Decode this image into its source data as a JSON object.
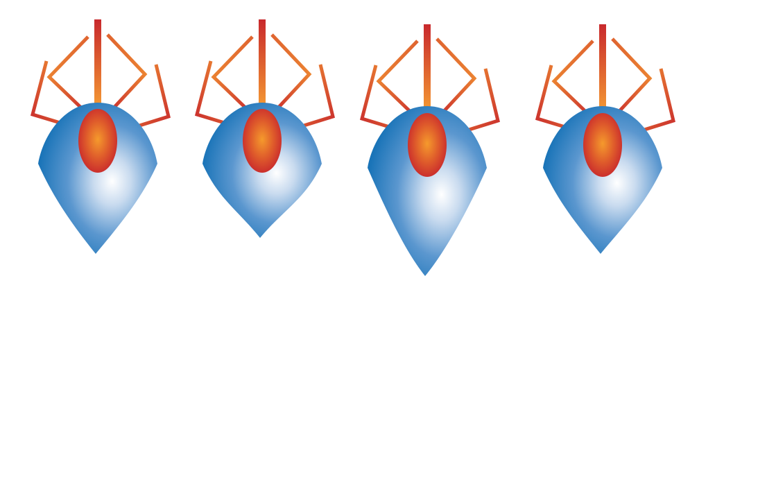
{
  "colors": {
    "background": "#ffffff",
    "body_edge": "#1a74b8",
    "body_mid": "#6fa6d6",
    "body_highlight": "#ffffff",
    "head_center": "#f08a2a",
    "head_edge": "#c8292d",
    "leg_dark": "#c8292d",
    "leg_light": "#f7a033"
  },
  "figures": [
    {
      "name": "spider-1",
      "icon": "spider-icon"
    },
    {
      "name": "spider-2",
      "icon": "spider-icon"
    },
    {
      "name": "spider-3",
      "icon": "spider-icon"
    },
    {
      "name": "spider-4",
      "icon": "spider-icon"
    }
  ]
}
